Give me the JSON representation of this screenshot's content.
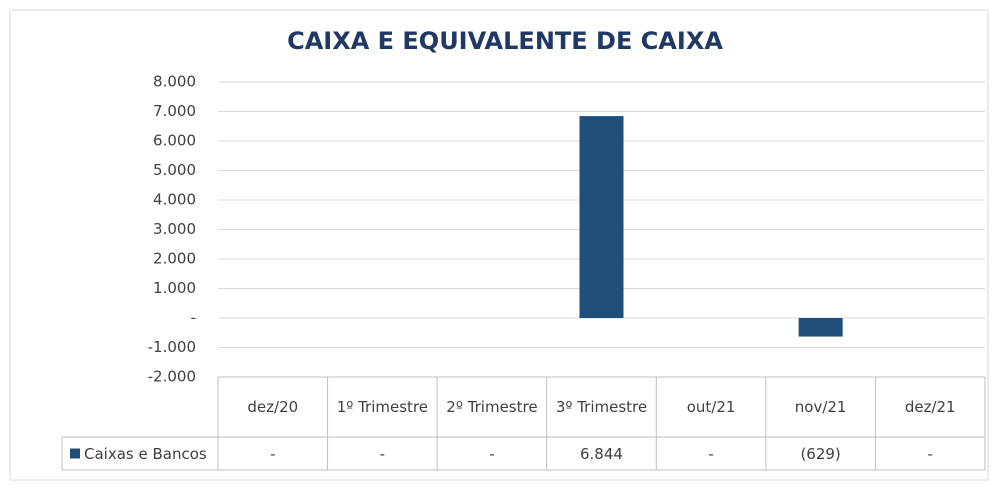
{
  "chart_data": {
    "type": "bar",
    "title": "CAIXA E EQUIVALENTE DE CAIXA",
    "categories": [
      "dez/20",
      "1º Trimestre",
      "2º Trimestre",
      "3º Trimestre",
      "out/21",
      "nov/21",
      "dez/21"
    ],
    "series": [
      {
        "name": "Caixas e Bancos",
        "color": "#1f4e79",
        "values": [
          0,
          0,
          0,
          6844,
          0,
          -629,
          0
        ],
        "value_labels": [
          "-",
          "-",
          "-",
          "6.844",
          "-",
          "(629)",
          "-"
        ]
      }
    ],
    "ylim": [
      -2000,
      8000
    ],
    "yticks": [
      {
        "value": -2000,
        "label": "-2.000"
      },
      {
        "value": -1000,
        "label": "-1.000"
      },
      {
        "value": 0,
        "label": "-"
      },
      {
        "value": 1000,
        "label": "1.000"
      },
      {
        "value": 2000,
        "label": "2.000"
      },
      {
        "value": 3000,
        "label": "3.000"
      },
      {
        "value": 4000,
        "label": "4.000"
      },
      {
        "value": 5000,
        "label": "5.000"
      },
      {
        "value": 6000,
        "label": "6.000"
      },
      {
        "value": 7000,
        "label": "7.000"
      },
      {
        "value": 8000,
        "label": "8.000"
      }
    ],
    "grid": true,
    "legend": "bottom-left"
  }
}
